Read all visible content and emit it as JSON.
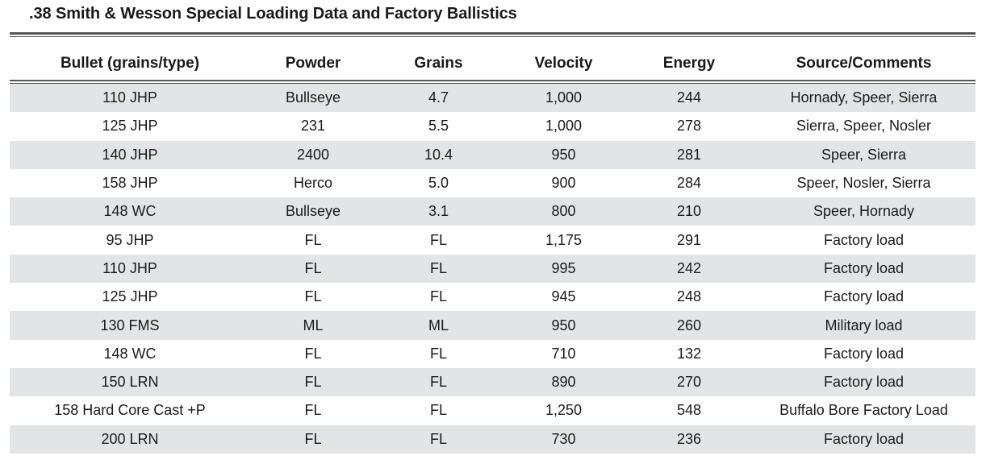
{
  "title": ".38 Smith & Wesson Special Loading Data and Factory Ballistics",
  "columns": [
    "Bullet (grains/type)",
    "Powder",
    "Grains",
    "Velocity",
    "Energy",
    "Source/Comments"
  ],
  "rows": [
    [
      "110 JHP",
      "Bullseye",
      "4.7",
      "1,000",
      "244",
      "Hornady, Speer, Sierra"
    ],
    [
      "125 JHP",
      "231",
      "5.5",
      "1,000",
      "278",
      "Sierra, Speer, Nosler"
    ],
    [
      "140 JHP",
      "2400",
      "10.4",
      "950",
      "281",
      "Speer, Sierra"
    ],
    [
      "158 JHP",
      "Herco",
      "5.0",
      "900",
      "284",
      "Speer, Nosler, Sierra"
    ],
    [
      "148 WC",
      "Bullseye",
      "3.1",
      "800",
      "210",
      "Speer, Hornady"
    ],
    [
      "95 JHP",
      "FL",
      "FL",
      "1,175",
      "291",
      "Factory load"
    ],
    [
      "110 JHP",
      "FL",
      "FL",
      "995",
      "242",
      "Factory load"
    ],
    [
      "125 JHP",
      "FL",
      "FL",
      "945",
      "248",
      "Factory load"
    ],
    [
      "130 FMS",
      "ML",
      "ML",
      "950",
      "260",
      "Military load"
    ],
    [
      "148 WC",
      "FL",
      "FL",
      "710",
      "132",
      "Factory load"
    ],
    [
      "150 LRN",
      "FL",
      "FL",
      "890",
      "270",
      "Factory load"
    ],
    [
      "158 Hard Core Cast +P",
      "FL",
      "FL",
      "1,250",
      "548",
      "Buffalo Bore Factory Load"
    ],
    [
      "200 LRN",
      "FL",
      "FL",
      "730",
      "236",
      "Factory load"
    ]
  ]
}
